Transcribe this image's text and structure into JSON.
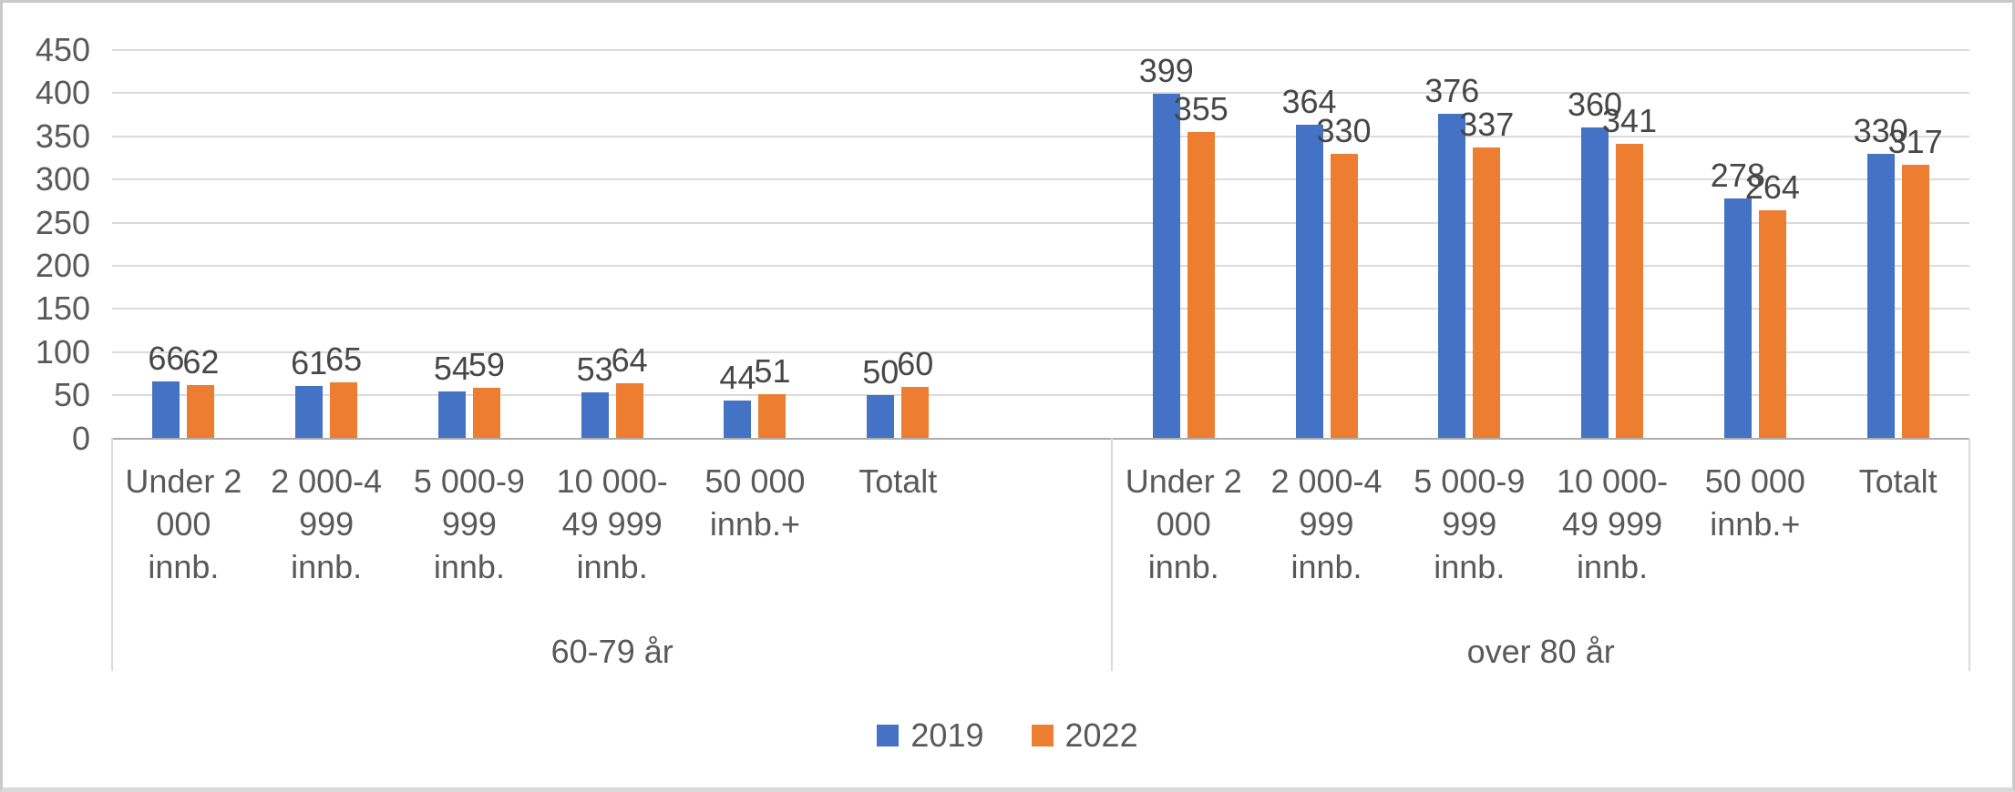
{
  "chart_data": {
    "type": "bar",
    "title": "",
    "xlabel": "",
    "ylabel": "",
    "ylim": [
      0,
      450
    ],
    "yticks": [
      0,
      50,
      100,
      150,
      200,
      250,
      300,
      350,
      400,
      450
    ],
    "grid": true,
    "legend_position": "bottom",
    "legend": [
      "2019",
      "2022"
    ],
    "colors": {
      "2019": "#4472C4",
      "2022": "#ED7D31"
    },
    "axis_text_color": "#595959",
    "data_label_color": "#474747",
    "grid_color": "#DBDBDB",
    "axis_line_color": "#ADADAD",
    "separator_color": "#D9D9D9",
    "groups": [
      {
        "label": "60-79 år",
        "categories": [
          {
            "label": "Under 2 000 innb.",
            "lines": [
              "Under 2",
              "000",
              "innb."
            ]
          },
          {
            "label": "2 000-4 999 innb.",
            "lines": [
              "2 000-4",
              "999",
              "innb."
            ]
          },
          {
            "label": "5 000-9 999 innb.",
            "lines": [
              "5 000-9",
              "999",
              "innb."
            ]
          },
          {
            "label": "10 000-49 999 innb.",
            "lines": [
              "10 000-",
              "49 999",
              "innb."
            ]
          },
          {
            "label": "50 000 innb.+",
            "lines": [
              "50 000",
              "innb.+"
            ]
          },
          {
            "label": "Totalt",
            "lines": [
              "Totalt"
            ]
          }
        ],
        "series": [
          {
            "name": "2019",
            "values": [
              66,
              61,
              54,
              53,
              44,
              50
            ]
          },
          {
            "name": "2022",
            "values": [
              62,
              65,
              59,
              64,
              51,
              60
            ]
          }
        ]
      },
      {
        "label": "over 80 år",
        "categories": [
          {
            "label": "Under 2 000 innb.",
            "lines": [
              "Under 2",
              "000",
              "innb."
            ]
          },
          {
            "label": "2 000-4 999 innb.",
            "lines": [
              "2 000-4",
              "999",
              "innb."
            ]
          },
          {
            "label": "5 000-9 999 innb.",
            "lines": [
              "5 000-9",
              "999",
              "innb."
            ]
          },
          {
            "label": "10 000-49 999 innb.",
            "lines": [
              "10 000-",
              "49 999",
              "innb."
            ]
          },
          {
            "label": "50 000 innb.+",
            "lines": [
              "50 000",
              "innb.+"
            ]
          },
          {
            "label": "Totalt",
            "lines": [
              "Totalt"
            ]
          }
        ],
        "series": [
          {
            "name": "2019",
            "values": [
              399,
              364,
              376,
              360,
              278,
              330
            ]
          },
          {
            "name": "2022",
            "values": [
              355,
              330,
              337,
              341,
              264,
              317
            ]
          }
        ]
      }
    ]
  }
}
